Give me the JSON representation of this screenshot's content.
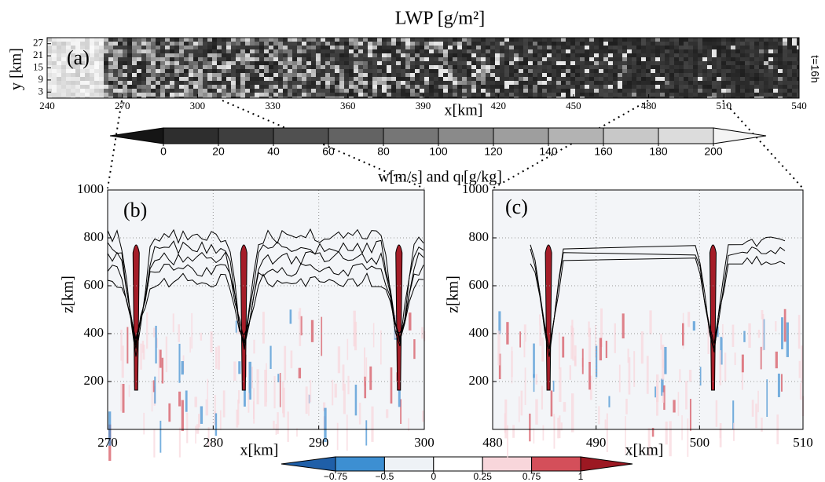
{
  "chart_data": [
    {
      "type": "heatmap",
      "title": "LWP [g/m²]",
      "panel_label": "(a)",
      "annotation": "t=16h",
      "x_label": "x[km]",
      "y_label": "y [km]",
      "xlim": [
        240,
        540
      ],
      "xticks": [
        240,
        270,
        300,
        330,
        360,
        390,
        420,
        450,
        480,
        510,
        540
      ],
      "ylim": [
        0,
        30
      ],
      "yticks": [
        3,
        9,
        15,
        21,
        27
      ],
      "colorbar": {
        "ticks": [
          0,
          20,
          40,
          60,
          80,
          100,
          120,
          140,
          160,
          180,
          200
        ],
        "colors": [
          "#151515",
          "#2e2e2e",
          "#3e3e3e",
          "#505050",
          "#636363",
          "#767676",
          "#8a8a8a",
          "#9e9e9e",
          "#b3b3b3",
          "#c8c8c8",
          "#dcdcdc",
          "#f4f4f4"
        ]
      }
    },
    {
      "type": "contour",
      "title": "w[m/s] and qₗ[g/kg]",
      "panel_label": "(b)",
      "x_label": "x[km]",
      "y_label": "z[km]",
      "xlim": [
        270,
        300
      ],
      "xticks": [
        270,
        280,
        290,
        300
      ],
      "ylim": [
        0,
        1000
      ],
      "yticks": [
        200,
        400,
        600,
        800,
        1000
      ],
      "grid": true,
      "colorbar": {
        "ticks": [
          {
            "value": -0.75,
            "label": "−0.75"
          },
          {
            "value": -0.5,
            "label": "−0.5"
          },
          0,
          0.25,
          0.75,
          1
        ],
        "colors": [
          "#1f5fa8",
          "#3d8fd2",
          "#eef2f6",
          "#ffffff",
          "#f8d6db",
          "#d44f5a",
          "#9c1822"
        ]
      }
    },
    {
      "type": "contour",
      "panel_label": "(c)",
      "x_label": "x[km]",
      "y_label": "z[km]",
      "xlim": [
        480,
        510
      ],
      "xticks": [
        480,
        490,
        500,
        510
      ],
      "ylim": [
        0,
        1000
      ],
      "yticks": [
        200,
        400,
        600,
        800,
        1000
      ],
      "grid": true
    }
  ]
}
